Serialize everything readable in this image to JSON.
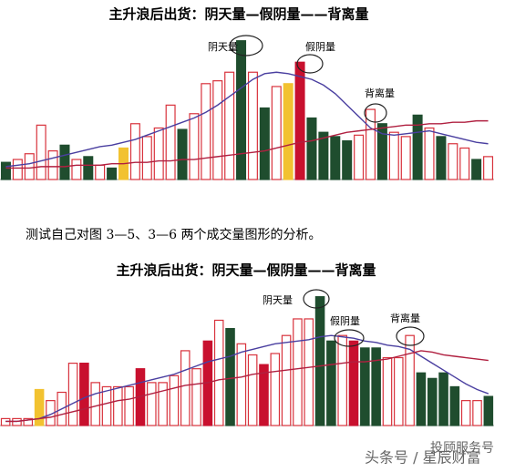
{
  "chart_data": [
    {
      "type": "bar",
      "title": "主升浪后出货：阴天量—假阴量——背离量",
      "annotations": [
        "阴天量",
        "假阴量",
        "背离量"
      ],
      "categories": [
        null,
        null,
        null,
        null,
        null,
        null,
        null,
        null,
        null,
        null,
        null,
        null,
        null,
        null,
        null,
        null,
        null,
        null,
        null,
        null,
        null,
        null,
        null,
        null,
        null,
        null,
        null,
        null,
        null,
        null,
        null,
        null,
        null,
        null,
        null,
        null,
        null,
        null,
        null,
        null,
        null,
        null
      ],
      "values": [
        12,
        14,
        18,
        38,
        20,
        24,
        14,
        16,
        10,
        8,
        22,
        39,
        30,
        36,
        52,
        35,
        46,
        67,
        69,
        75,
        97,
        75,
        50,
        65,
        67,
        82,
        43,
        33,
        30,
        27,
        31,
        49,
        39,
        33,
        30,
        45,
        36,
        30,
        25,
        22,
        14,
        16
      ],
      "colors": [
        "#1f4d2e",
        "#ffffff",
        "#ffffff",
        "#ffffff",
        "#ffffff",
        "#1f4d2e",
        "#ffffff",
        "#1f4d2e",
        "#ffffff",
        "#1f4d2e",
        "#f2c230",
        "#ffffff",
        "#ffffff",
        "#ffffff",
        "#ffffff",
        "#1f4d2e",
        "#ffffff",
        "#ffffff",
        "#ffffff",
        "#ffffff",
        "#1f4d2e",
        "#ffffff",
        "#1f4d2e",
        "#ffffff",
        "#f2c230",
        "#c8102e",
        "#1f4d2e",
        "#1f4d2e",
        "#1f4d2e",
        "#1f4d2e",
        "#ffffff",
        "#ffffff",
        "#1f4d2e",
        "#ffffff",
        "#ffffff",
        "#1f4d2e",
        "#ffffff",
        "#1f4d2e",
        "#ffffff",
        "#ffffff",
        "#1f4d2e",
        "#ffffff"
      ],
      "lines": [
        {
          "color": "#4a3fa0",
          "values": [
            9,
            10,
            11,
            13,
            15,
            17,
            19,
            21,
            23,
            24,
            26,
            28,
            31,
            34,
            37,
            40,
            43,
            47,
            52,
            58,
            64,
            70,
            74,
            75,
            74,
            72,
            70,
            66,
            60,
            52,
            44,
            36,
            32,
            31,
            32,
            33,
            34,
            32,
            30,
            28,
            26,
            25
          ]
        },
        {
          "color": "#b02040",
          "values": [
            8,
            8,
            8,
            9,
            9,
            9,
            10,
            10,
            10,
            11,
            11,
            12,
            12,
            13,
            13,
            14,
            14,
            15,
            16,
            17,
            18,
            19,
            20,
            22,
            24,
            26,
            27,
            29,
            31,
            33,
            34,
            35,
            36,
            37,
            38,
            38,
            39,
            39,
            40,
            40,
            41,
            41
          ]
        }
      ],
      "ylim": [
        0,
        100
      ]
    },
    {
      "type": "bar",
      "title": "主升浪后出货：阴天量—假阴量——背离量",
      "annotations": [
        "阴天量",
        "假阴量",
        "背离量"
      ],
      "categories": [
        null,
        null,
        null,
        null,
        null,
        null,
        null,
        null,
        null,
        null,
        null,
        null,
        null,
        null,
        null,
        null,
        null,
        null,
        null,
        null,
        null,
        null,
        null,
        null,
        null,
        null,
        null,
        null,
        null,
        null,
        null,
        null,
        null,
        null,
        null,
        null,
        null,
        null,
        null,
        null,
        null,
        null,
        null,
        null
      ],
      "values": [
        5,
        5,
        5,
        26,
        18,
        24,
        45,
        45,
        31,
        28,
        28,
        28,
        41,
        31,
        31,
        36,
        54,
        41,
        61,
        76,
        70,
        59,
        51,
        44,
        52,
        65,
        77,
        77,
        93,
        61,
        65,
        61,
        56,
        56,
        49,
        49,
        65,
        38,
        34,
        38,
        28,
        18,
        18,
        21
      ],
      "colors": [
        "#ffffff",
        "#ffffff",
        "#ffffff",
        "#f2c230",
        "#ffffff",
        "#ffffff",
        "#ffffff",
        "#c8102e",
        "#ffffff",
        "#ffffff",
        "#ffffff",
        "#ffffff",
        "#c8102e",
        "#ffffff",
        "#ffffff",
        "#ffffff",
        "#ffffff",
        "#ffffff",
        "#c8102e",
        "#ffffff",
        "#1f4d2e",
        "#ffffff",
        "#ffffff",
        "#c8102e",
        "#ffffff",
        "#ffffff",
        "#ffffff",
        "#ffffff",
        "#1f4d2e",
        "#1f4d2e",
        "#ffffff",
        "#c8102e",
        "#1f4d2e",
        "#1f4d2e",
        "#ffffff",
        "#ffffff",
        "#ffffff",
        "#1f4d2e",
        "#1f4d2e",
        "#1f4d2e",
        "#1f4d2e",
        "#ffffff",
        "#ffffff",
        "#1f4d2e"
      ],
      "lines": [
        {
          "color": "#4a3fa0",
          "values": [
            3,
            3,
            4,
            5,
            8,
            12,
            16,
            20,
            23,
            25,
            27,
            29,
            31,
            33,
            35,
            37,
            40,
            43,
            46,
            48,
            50,
            53,
            55,
            57,
            59,
            60,
            61,
            62,
            64,
            65,
            64,
            63,
            61,
            60,
            58,
            57,
            55,
            50,
            45,
            40,
            35,
            30,
            26,
            23
          ]
        },
        {
          "color": "#b02040",
          "values": [
            3,
            3,
            4,
            5,
            6,
            8,
            10,
            12,
            14,
            16,
            18,
            19,
            21,
            23,
            25,
            27,
            29,
            30,
            31,
            33,
            34,
            35,
            37,
            38,
            39,
            40,
            41,
            42,
            43,
            44,
            45,
            46,
            46,
            47,
            48,
            50,
            52,
            54,
            53,
            51,
            50,
            49,
            48,
            47
          ]
        }
      ],
      "ylim": [
        0,
        100
      ]
    }
  ],
  "caption": "测试自己对图 3—5、3—6 两个成交量图形的分析。",
  "watermark": {
    "line1": "投顾服务号",
    "line2": "头条号 / 星辰财富"
  }
}
